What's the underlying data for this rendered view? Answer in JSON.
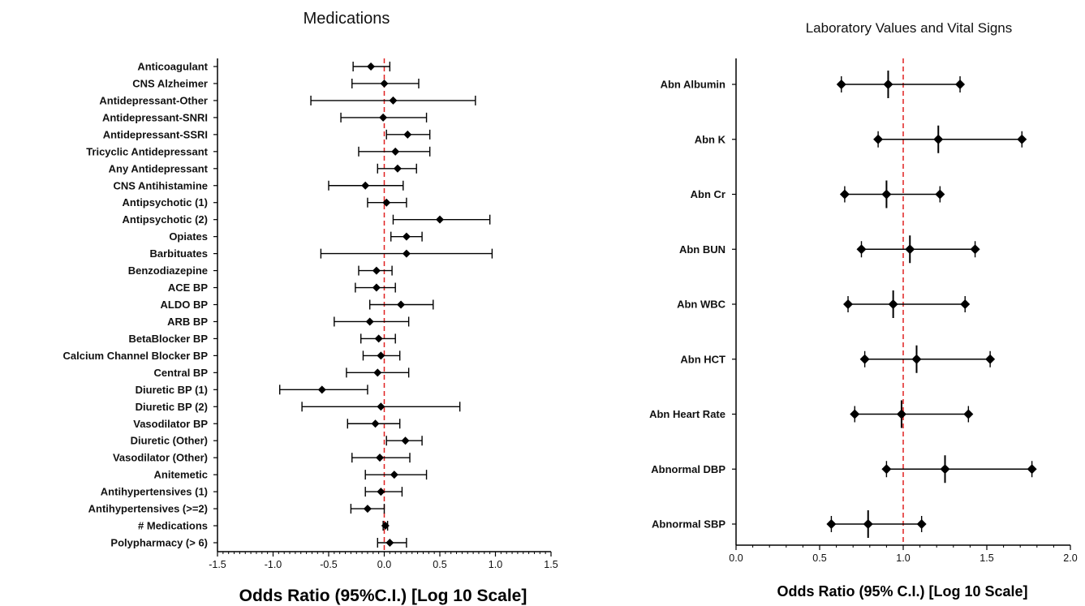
{
  "colors": {
    "marker": "#000000",
    "reference_line": "#e02020",
    "axis": "#000000"
  },
  "chart_data": [
    {
      "type": "scatter",
      "subtype": "forest-plot",
      "title": "Medications",
      "xlabel": "Odds Ratio (95%C.I.) [Log 10 Scale]",
      "ylabel": "",
      "xlim": [
        -1.5,
        1.5
      ],
      "xticks": [
        "-1.5",
        "-1.0",
        "-0.5",
        "0.0",
        "0.5",
        "1.0",
        "1.5"
      ],
      "reference_value": 0,
      "grid": false,
      "categories": [
        "Anticoagulant",
        "CNS Alzheimer",
        "Antidepressant-Other",
        "Antidepressant-SNRI",
        "Antidepressant-SSRI",
        "Tricyclic Antidepressant",
        "Any Antidepressant",
        "CNS Antihistamine",
        "Antipsychotic (1)",
        "Antipsychotic (2)",
        "Opiates",
        "Barbituates",
        "Benzodiazepine",
        "ACE BP",
        "ALDO BP",
        "ARB BP",
        "BetaBlocker BP",
        "Calcium Channel Blocker BP",
        "Central BP",
        "Diuretic BP (1)",
        "Diuretic BP (2)",
        "Vasodilator BP",
        "Diuretic (Other)",
        "Vasodilator (Other)",
        "Anitemetic",
        "Antihypertensives (1)",
        "Antihypertensives (>=2)",
        "# Medications",
        "Polypharmacy (> 6)"
      ],
      "estimates": [
        -0.12,
        0.0,
        0.08,
        -0.01,
        0.21,
        0.1,
        0.12,
        -0.17,
        0.02,
        0.5,
        0.2,
        0.2,
        -0.07,
        -0.07,
        0.15,
        -0.13,
        -0.05,
        -0.03,
        -0.06,
        -0.56,
        -0.03,
        -0.08,
        0.19,
        -0.04,
        0.09,
        -0.03,
        -0.15,
        0.01,
        0.05
      ],
      "lower": [
        -0.28,
        -0.29,
        -0.66,
        -0.39,
        0.02,
        -0.23,
        -0.06,
        -0.5,
        -0.15,
        0.08,
        0.06,
        -0.57,
        -0.23,
        -0.26,
        -0.13,
        -0.45,
        -0.21,
        -0.19,
        -0.34,
        -0.94,
        -0.74,
        -0.33,
        0.02,
        -0.29,
        -0.17,
        -0.17,
        -0.3,
        -0.01,
        -0.06
      ],
      "upper": [
        0.05,
        0.31,
        0.82,
        0.38,
        0.41,
        0.41,
        0.29,
        0.17,
        0.2,
        0.95,
        0.34,
        0.97,
        0.07,
        0.1,
        0.44,
        0.22,
        0.1,
        0.14,
        0.22,
        -0.15,
        0.68,
        0.14,
        0.34,
        0.23,
        0.38,
        0.16,
        0.0,
        0.03,
        0.2
      ]
    },
    {
      "type": "scatter",
      "subtype": "forest-plot",
      "title": "Laboratory Values and Vital Signs",
      "xlabel": "Odds Ratio (95% C.I.) [Log 10 Scale]",
      "ylabel": "",
      "xlim": [
        0,
        2
      ],
      "xticks": [
        "0.0",
        "0.5",
        "1.0",
        "1.5",
        "2.0"
      ],
      "reference_value": 1.0,
      "grid": false,
      "categories": [
        "Abn Albumin",
        "Abn K",
        "Abn Cr",
        "Abn BUN",
        "Abn WBC",
        "Abn HCT",
        "Abn Heart Rate",
        "Abnormal DBP",
        "Abnormal SBP"
      ],
      "estimates": [
        0.91,
        1.21,
        0.9,
        1.04,
        0.94,
        1.08,
        0.99,
        1.25,
        0.79
      ],
      "lower": [
        0.63,
        0.85,
        0.65,
        0.75,
        0.67,
        0.77,
        0.71,
        0.9,
        0.57
      ],
      "upper": [
        1.34,
        1.71,
        1.22,
        1.43,
        1.37,
        1.52,
        1.39,
        1.77,
        1.11
      ]
    }
  ]
}
